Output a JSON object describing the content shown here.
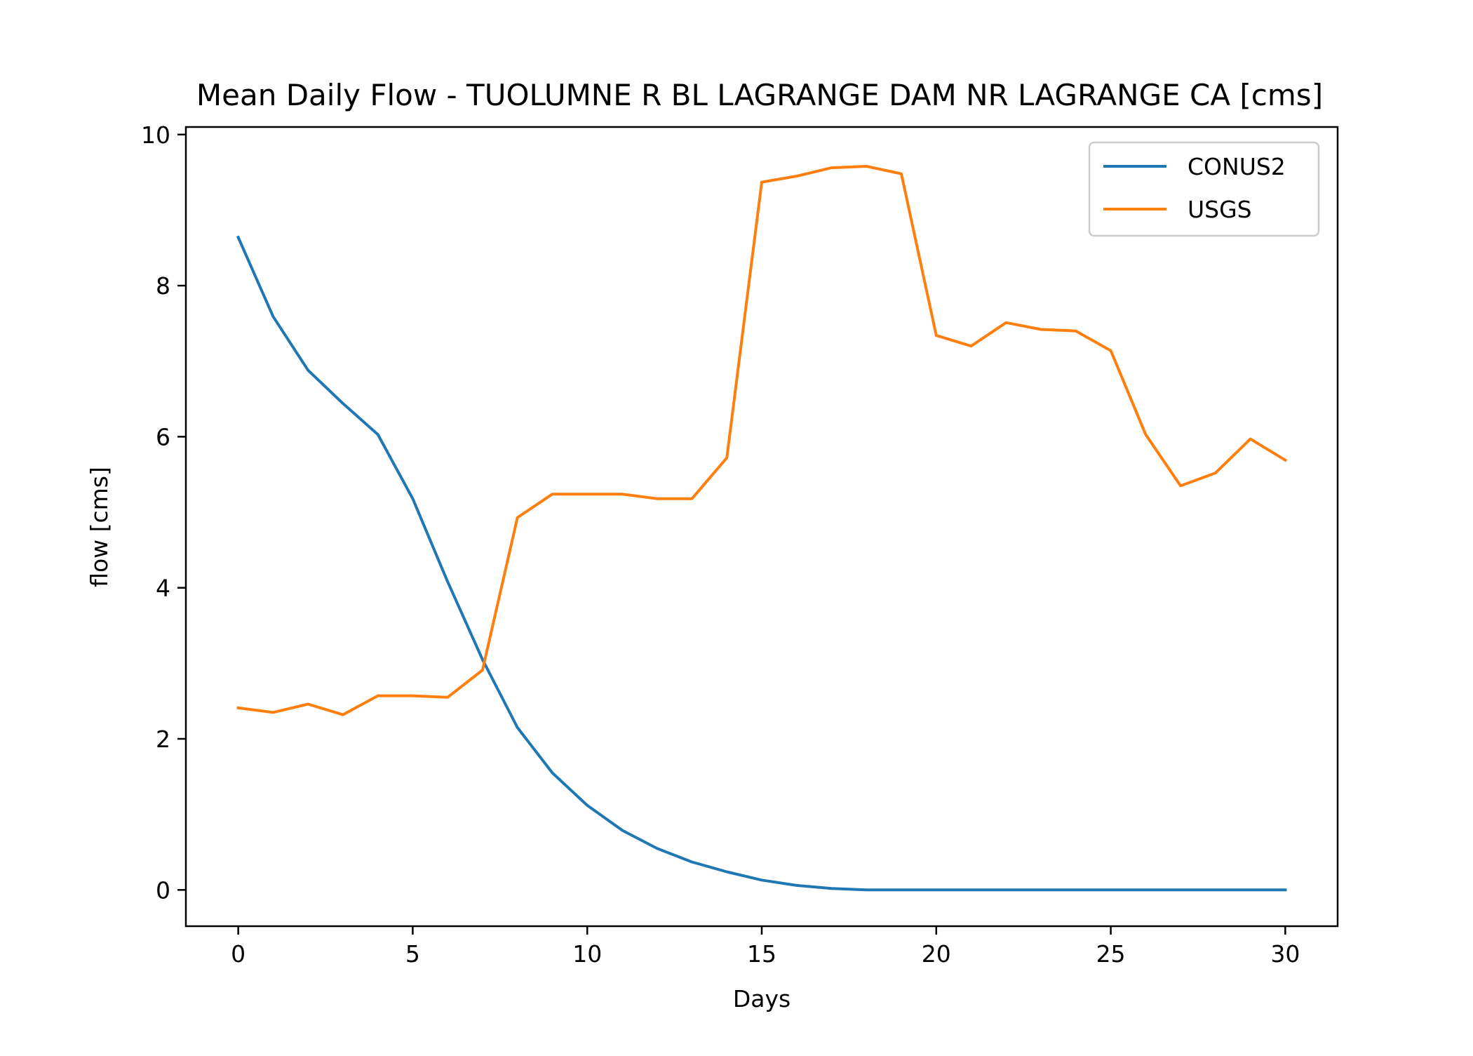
{
  "chart_data": {
    "type": "line",
    "title": "Mean Daily Flow - TUOLUMNE R BL LAGRANGE DAM NR LAGRANGE CA [cms]",
    "xlabel": "Days",
    "ylabel": "flow [cms]",
    "xlim": [
      -1.5,
      31.5
    ],
    "ylim": [
      -0.48,
      10.1
    ],
    "xticks": [
      0,
      5,
      10,
      15,
      20,
      25,
      30
    ],
    "xtick_labels": [
      "0",
      "5",
      "10",
      "15",
      "20",
      "25",
      "30"
    ],
    "yticks": [
      0,
      2,
      4,
      6,
      8,
      10
    ],
    "ytick_labels": [
      "0",
      "2",
      "4",
      "6",
      "8",
      "10"
    ],
    "grid": false,
    "legend_position": "top-right",
    "x": [
      0,
      1,
      2,
      3,
      4,
      5,
      6,
      7,
      8,
      9,
      10,
      11,
      12,
      13,
      14,
      15,
      16,
      17,
      18,
      19,
      20,
      21,
      22,
      23,
      24,
      25,
      26,
      27,
      28,
      29,
      30
    ],
    "series": [
      {
        "name": "CONUS2",
        "color": "#1f77b4",
        "values": [
          8.64,
          7.59,
          6.88,
          6.44,
          6.03,
          5.18,
          4.08,
          3.05,
          2.15,
          1.55,
          1.12,
          0.79,
          0.55,
          0.37,
          0.24,
          0.13,
          0.06,
          0.02,
          0.0,
          0.0,
          0.0,
          0.0,
          0.0,
          0.0,
          0.0,
          0.0,
          0.0,
          0.0,
          0.0,
          0.0,
          0.0
        ]
      },
      {
        "name": "USGS",
        "color": "#ff7f0e",
        "values": [
          2.41,
          2.35,
          2.46,
          2.32,
          2.57,
          2.57,
          2.55,
          2.91,
          4.93,
          5.24,
          5.24,
          5.24,
          5.18,
          5.18,
          5.72,
          9.37,
          9.45,
          9.56,
          9.58,
          9.48,
          7.34,
          7.2,
          7.51,
          7.42,
          7.4,
          7.14,
          6.03,
          5.35,
          5.52,
          5.97,
          5.69
        ]
      }
    ]
  }
}
